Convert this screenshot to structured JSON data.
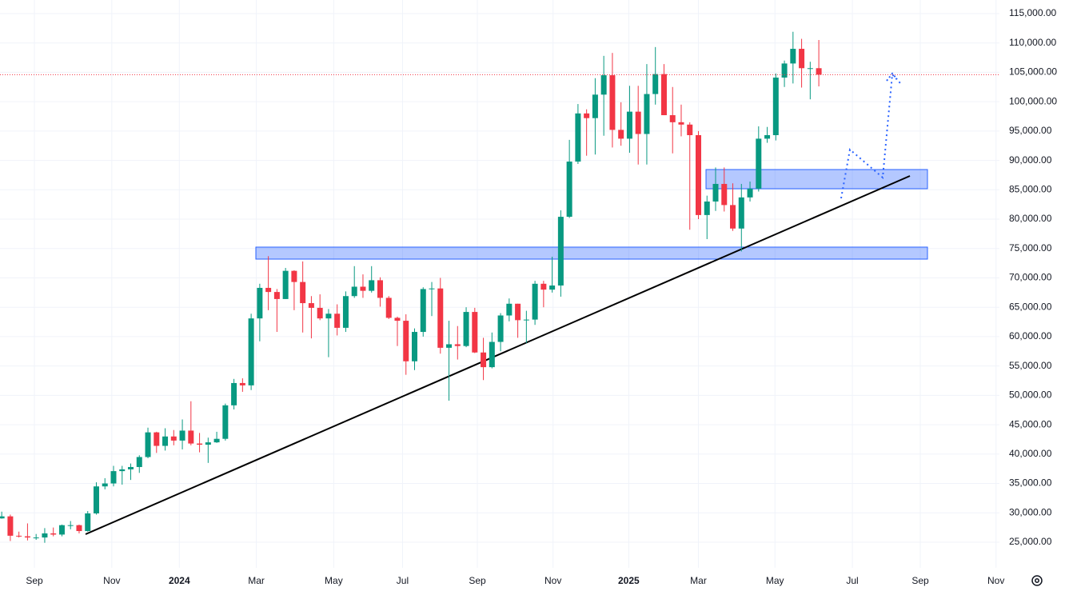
{
  "chart_data": {
    "type": "candlestick",
    "up_color": "#089981",
    "down_color": "#f23645",
    "grid": true,
    "last_price_line": true,
    "open": [
      29050,
      29400,
      26100,
      26000,
      25800,
      25800,
      26500,
      26300,
      27900,
      27900,
      26900,
      29900,
      34500,
      35000,
      37100,
      37400,
      37800,
      39500,
      43700,
      41400,
      43000,
      42300,
      44000,
      41800,
      41600,
      42000,
      42600,
      48300,
      52100,
      51700,
      63100,
      68300,
      67600,
      66400,
      71200,
      69300,
      65700,
      64900,
      63100,
      63900,
      61500,
      66900,
      68500,
      67800,
      69600,
      66600,
      63200,
      62700,
      55800,
      60800,
      68100,
      68200,
      58100,
      58700,
      58400,
      64200,
      57300,
      54800,
      59100,
      63600,
      65600,
      62800,
      62900,
      69000,
      68000,
      68700,
      80400,
      89800,
      98000,
      97200,
      101200,
      104500,
      95200,
      93700,
      98300,
      94500,
      101300,
      104700,
      97700,
      96500,
      96100,
      94300,
      80700,
      83000,
      86000,
      82400,
      78400,
      83700,
      85200,
      93700,
      94300,
      104100,
      106500,
      109000,
      105700,
      105700
    ],
    "high": [
      30200,
      29700,
      26800,
      28200,
      26400,
      27400,
      27500,
      28000,
      28600,
      28000,
      30300,
      35200,
      35900,
      38000,
      38000,
      38400,
      39800,
      44500,
      43800,
      44400,
      44100,
      45900,
      49000,
      43600,
      42800,
      43800,
      48600,
      52800,
      52900,
      63900,
      69000,
      73700,
      68100,
      71700,
      71300,
      72800,
      66900,
      67200,
      64700,
      65500,
      67700,
      72000,
      70600,
      72000,
      70100,
      66900,
      63400,
      63800,
      61400,
      68400,
      69300,
      70000,
      62700,
      61800,
      65000,
      64900,
      59800,
      60700,
      64000,
      66500,
      65600,
      64400,
      69500,
      69500,
      73600,
      81500,
      93500,
      99600,
      98700,
      104000,
      107800,
      108300,
      99900,
      102700,
      102700,
      106400,
      109300,
      106400,
      102500,
      99500,
      96500,
      95000,
      84000,
      88800,
      88800,
      86100,
      86000,
      86400,
      95800,
      95700,
      104800,
      107000,
      111900,
      110700,
      106800,
      110500
    ],
    "low": [
      29000,
      25200,
      25800,
      25300,
      25400,
      24900,
      26000,
      26000,
      27200,
      26500,
      26800,
      29700,
      34000,
      34500,
      34800,
      35600,
      36800,
      39300,
      40200,
      40600,
      41500,
      40800,
      41500,
      40300,
      38500,
      41900,
      42300,
      47600,
      50600,
      50900,
      59200,
      64500,
      60800,
      66400,
      64500,
      60700,
      59700,
      62800,
      56500,
      60200,
      60800,
      66600,
      66600,
      67500,
      65100,
      63000,
      58400,
      53500,
      54300,
      60000,
      63500,
      57100,
      49100,
      56100,
      58200,
      57200,
      52600,
      54600,
      57500,
      62600,
      59800,
      58900,
      62000,
      65000,
      67500,
      66800,
      80200,
      89400,
      90800,
      91000,
      94200,
      92200,
      92500,
      91300,
      89300,
      89300,
      99500,
      97700,
      91200,
      94100,
      78200,
      80000,
      76600,
      81400,
      81300,
      78000,
      74500,
      83000,
      84700,
      93000,
      93400,
      102500,
      103100,
      102400,
      100400,
      102600
    ],
    "close": [
      29400,
      26100,
      26000,
      25800,
      25800,
      26500,
      26300,
      27900,
      27900,
      26900,
      29900,
      34500,
      35000,
      37100,
      37400,
      37800,
      39500,
      43700,
      41400,
      43000,
      42300,
      44000,
      41800,
      41600,
      42000,
      42600,
      48300,
      52100,
      51700,
      63100,
      68300,
      67600,
      66400,
      71200,
      69300,
      65700,
      64900,
      63100,
      63900,
      61500,
      66900,
      68500,
      67800,
      69600,
      66600,
      63200,
      62700,
      55800,
      60800,
      68100,
      68200,
      58100,
      58700,
      58400,
      64200,
      57300,
      54800,
      59100,
      63600,
      65600,
      62800,
      62900,
      69000,
      68000,
      68700,
      80400,
      89800,
      98000,
      97200,
      101200,
      104500,
      95200,
      93700,
      98300,
      94500,
      101300,
      104700,
      97700,
      96500,
      96100,
      94300,
      80700,
      83000,
      86000,
      82400,
      78400,
      83700,
      85200,
      93700,
      94300,
      104100,
      106500,
      109000,
      105700,
      105700,
      104600
    ],
    "xlim": [
      -0.2,
      116
    ],
    "xticks": [
      {
        "value": 3.8,
        "label": "Sep"
      },
      {
        "value": 12.8,
        "label": "Nov"
      },
      {
        "value": 20.65,
        "label": "2024"
      },
      {
        "value": 29.6,
        "label": "Mar"
      },
      {
        "value": 38.6,
        "label": "May"
      },
      {
        "value": 46.6,
        "label": "Jul"
      },
      {
        "value": 55.3,
        "label": "Sep"
      },
      {
        "value": 64.1,
        "label": "Nov"
      },
      {
        "value": 72.9,
        "label": "2025"
      },
      {
        "value": 81.0,
        "label": "Mar"
      },
      {
        "value": 89.9,
        "label": "May"
      },
      {
        "value": 98.9,
        "label": "Jul"
      },
      {
        "value": 106.8,
        "label": "Sep"
      },
      {
        "value": 115.6,
        "label": "Nov"
      }
    ],
    "ylim": [
      20640,
      117310
    ],
    "yticks": [
      {
        "value": 115000,
        "label": "115,000.00"
      },
      {
        "value": 110000,
        "label": "110,000.00"
      },
      {
        "value": 105000,
        "label": "105,000.00"
      },
      {
        "value": 100000,
        "label": "100,000.00"
      },
      {
        "value": 95000,
        "label": "95,000.00"
      },
      {
        "value": 90000,
        "label": "90,000.00"
      },
      {
        "value": 85000,
        "label": "85,000.00"
      },
      {
        "value": 80000,
        "label": "80,000.00"
      },
      {
        "value": 75000,
        "label": "75,000.00"
      },
      {
        "value": 70000,
        "label": "70,000.00"
      },
      {
        "value": 65000,
        "label": "65,000.00"
      },
      {
        "value": 60000,
        "label": "60,000.00"
      },
      {
        "value": 55000,
        "label": "55,000.00"
      },
      {
        "value": 50000,
        "label": "50,000.00"
      },
      {
        "value": 45000,
        "label": "45,000.00"
      },
      {
        "value": 40000,
        "label": "40,000.00"
      },
      {
        "value": 35000,
        "label": "35,000.00"
      },
      {
        "value": 30000,
        "label": "30,000.00"
      },
      {
        "value": 25000,
        "label": "25,000.00"
      }
    ]
  }
}
